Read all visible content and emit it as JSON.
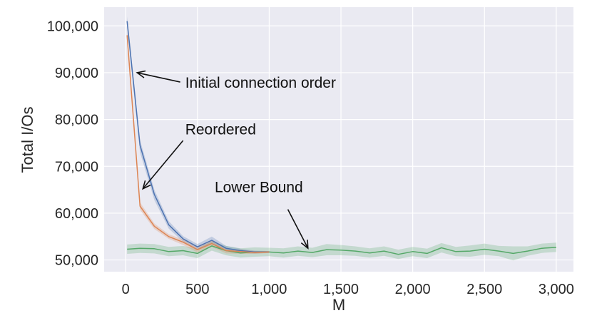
{
  "chart_data": {
    "type": "line",
    "title": "",
    "xlabel": "M",
    "ylabel": "Total I/Os",
    "xlim": [
      -150,
      3120
    ],
    "ylim": [
      47500,
      104000
    ],
    "xticks": [
      0,
      500,
      1000,
      1500,
      2000,
      2500,
      3000
    ],
    "xtick_labels": [
      "0",
      "500",
      "1,000",
      "1,500",
      "2,000",
      "2,500",
      "3,000"
    ],
    "yticks": [
      50000,
      60000,
      70000,
      80000,
      90000,
      100000
    ],
    "ytick_labels": [
      "50,000",
      "60,000",
      "70,000",
      "80,000",
      "90,000",
      "100,000"
    ],
    "grid": true,
    "background": "#eaeaf2",
    "series": [
      {
        "name": "Initial connection order",
        "color": "#4c72b0",
        "x": [
          10,
          100,
          200,
          300,
          400,
          500,
          600,
          700,
          800,
          900,
          1000
        ],
        "y": [
          101000,
          74500,
          64000,
          57500,
          54500,
          52800,
          54200,
          52500,
          52000,
          51700,
          51700
        ],
        "lower": [
          99500,
          73000,
          62800,
          56700,
          53900,
          52200,
          53400,
          51900,
          51500,
          51400,
          51500
        ],
        "upper": [
          102000,
          75600,
          65000,
          58300,
          55100,
          53400,
          55000,
          53000,
          52400,
          52000,
          51900
        ]
      },
      {
        "name": "Reordered",
        "color": "#dd8452",
        "x": [
          10,
          100,
          200,
          300,
          400,
          500,
          600,
          700,
          800,
          900,
          1000
        ],
        "y": [
          98000,
          61500,
          57200,
          55000,
          53800,
          52200,
          53500,
          52000,
          51800,
          51600,
          51700
        ],
        "lower": [
          97000,
          60700,
          56600,
          54500,
          53200,
          51600,
          52800,
          51400,
          51300,
          51300,
          51500
        ],
        "upper": [
          99000,
          62300,
          57800,
          55500,
          54400,
          52800,
          54200,
          52500,
          52200,
          51900,
          51900
        ]
      },
      {
        "name": "Lower Bound",
        "color": "#55a868",
        "x": [
          10,
          100,
          200,
          300,
          400,
          500,
          600,
          700,
          800,
          900,
          1000,
          1100,
          1200,
          1300,
          1400,
          1500,
          1600,
          1700,
          1800,
          1900,
          2000,
          2100,
          2200,
          2300,
          2400,
          2500,
          2600,
          2700,
          2800,
          2900,
          3000
        ],
        "y": [
          52300,
          52500,
          52400,
          51800,
          52000,
          51400,
          53000,
          52000,
          51500,
          51700,
          51700,
          51500,
          51900,
          51600,
          52200,
          52100,
          51900,
          51500,
          51900,
          51200,
          51800,
          51400,
          52600,
          51800,
          51900,
          52300,
          51900,
          51400,
          51900,
          52500,
          52700
        ],
        "lower": [
          51300,
          51500,
          51400,
          50800,
          51000,
          50400,
          52000,
          51000,
          50500,
          50700,
          50800,
          50500,
          50900,
          50600,
          51000,
          51000,
          50900,
          50500,
          50900,
          50200,
          50800,
          50400,
          51600,
          50800,
          50700,
          51100,
          50800,
          49900,
          50900,
          51500,
          51700
        ],
        "upper": [
          53300,
          53500,
          53400,
          52800,
          53000,
          52400,
          54000,
          53000,
          52500,
          52700,
          52600,
          52500,
          52900,
          52600,
          53400,
          53200,
          52900,
          52500,
          52900,
          52200,
          52800,
          52400,
          53600,
          52800,
          53100,
          53500,
          53000,
          52900,
          52900,
          53500,
          53700
        ]
      }
    ],
    "annotations": [
      {
        "text": "Initial connection order",
        "text_x": 415,
        "text_y": 88000,
        "arrow_to_x": 80,
        "arrow_to_y": 90000,
        "arrow_from_x": 380,
        "arrow_from_y": 88000
      },
      {
        "text": "Reordered",
        "text_x": 415,
        "text_y": 78000,
        "arrow_to_x": 120,
        "arrow_to_y": 65200,
        "arrow_from_x": 400,
        "arrow_from_y": 75500
      },
      {
        "text": "Lower Bound",
        "text_x": 620,
        "text_y": 65700,
        "arrow_to_x": 1270,
        "arrow_to_y": 52500,
        "arrow_from_x": 1130,
        "arrow_from_y": 60800
      }
    ]
  }
}
